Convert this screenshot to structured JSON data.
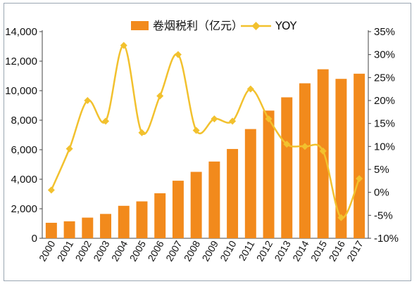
{
  "chart_data": {
    "type": "bar",
    "categories": [
      "2000",
      "2001",
      "2002",
      "2003",
      "2004",
      "2005",
      "2006",
      "2007",
      "2008",
      "2009",
      "2010",
      "2011",
      "2012",
      "2013",
      "2014",
      "2015",
      "2016",
      "2017"
    ],
    "series": [
      {
        "name": "卷烟税利（亿元）",
        "kind": "bar",
        "axis": "left",
        "color": "#f28a1c",
        "values": [
          1050,
          1150,
          1400,
          1650,
          2200,
          2500,
          3050,
          3900,
          4500,
          5200,
          6050,
          7400,
          8650,
          9550,
          10500,
          11450,
          10800,
          11150
        ]
      },
      {
        "name": "YOY",
        "kind": "line",
        "axis": "right",
        "color": "#f2c12e",
        "values": [
          0.5,
          9.5,
          20.0,
          15.5,
          32.0,
          13.0,
          21.0,
          30.0,
          13.5,
          16.0,
          15.5,
          22.5,
          16.0,
          10.5,
          10.0,
          9.0,
          -5.5,
          3.0
        ]
      }
    ],
    "y_left": {
      "ylim": [
        0,
        14000
      ],
      "ticks": [
        0,
        2000,
        4000,
        6000,
        8000,
        10000,
        12000,
        14000
      ],
      "tick_labels": [
        "0",
        "2,000",
        "4,000",
        "6,000",
        "8,000",
        "10,000",
        "12,000",
        "14,000"
      ]
    },
    "y_right": {
      "ylim": [
        -10,
        35
      ],
      "ticks": [
        -10,
        -5,
        0,
        5,
        10,
        15,
        20,
        25,
        30,
        35
      ],
      "tick_labels": [
        "-10%",
        "-5%",
        "0%",
        "5%",
        "10%",
        "15%",
        "20%",
        "25%",
        "30%",
        "35%"
      ]
    },
    "legend": {
      "placement": "top",
      "items": [
        {
          "label": "卷烟税利（亿元）",
          "marker": "bar",
          "color": "#f28a1c"
        },
        {
          "label": "YOY",
          "marker": "line-diamond",
          "color": "#f2c12e"
        }
      ]
    },
    "grid": false,
    "colors": {
      "border": "#9aa6b2",
      "axis": "#444444",
      "text": "#111111"
    }
  }
}
